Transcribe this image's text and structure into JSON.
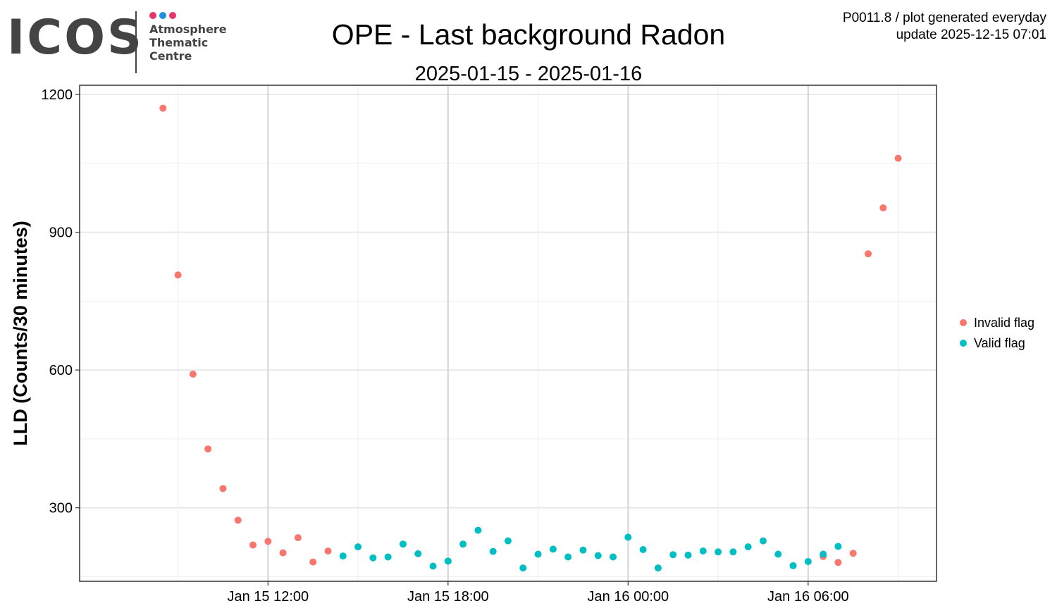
{
  "logo": {
    "wordmark": "ICOS",
    "lines": [
      "Atmosphere",
      "Thematic",
      "Centre"
    ],
    "dot_colors": [
      "#e6336b",
      "#1e8fe6",
      "#e6336b"
    ],
    "text_color": "#444444"
  },
  "header": {
    "note_line1": "P0011.8 / plot generated everyday",
    "note_line2": "update  2025-12-15 07:01"
  },
  "chart_data": {
    "type": "scatter",
    "title": "OPE - Last background Radon",
    "subtitle": "2025-01-15 - 2025-01-16",
    "xlabel": "",
    "ylabel": "LLD (Counts/30 minutes)",
    "x_unit": "datetime",
    "xlim": [
      "2025-01-15 07:00",
      "2025-01-16 09:00"
    ],
    "ylim": [
      140,
      1220
    ],
    "x_ticks": [
      "2025-01-15 12:00",
      "2025-01-15 18:00",
      "2025-01-16 00:00",
      "2025-01-16 06:00"
    ],
    "x_tick_labels": [
      "Jan 15 12:00",
      "Jan 15 18:00",
      "Jan 16 00:00",
      "Jan 16 06:00"
    ],
    "y_ticks": [
      300,
      600,
      900,
      1200
    ],
    "y_tick_labels": [
      "300",
      "600",
      "900",
      "1200"
    ],
    "grid": true,
    "legend_position": "right",
    "series": [
      {
        "name": "Invalid flag",
        "color": "#f8766d",
        "points": [
          [
            "2025-01-15 08:30",
            1170
          ],
          [
            "2025-01-15 09:00",
            807
          ],
          [
            "2025-01-15 09:30",
            591
          ],
          [
            "2025-01-15 10:00",
            428
          ],
          [
            "2025-01-15 10:30",
            342
          ],
          [
            "2025-01-15 11:00",
            273
          ],
          [
            "2025-01-15 11:30",
            219
          ],
          [
            "2025-01-15 12:00",
            227
          ],
          [
            "2025-01-15 12:30",
            202
          ],
          [
            "2025-01-15 13:00",
            235
          ],
          [
            "2025-01-15 13:30",
            182
          ],
          [
            "2025-01-15 14:00",
            206
          ],
          [
            "2025-01-16 06:30",
            194
          ],
          [
            "2025-01-16 07:00",
            181
          ],
          [
            "2025-01-16 07:30",
            201
          ],
          [
            "2025-01-16 08:00",
            853
          ],
          [
            "2025-01-16 08:30",
            953
          ],
          [
            "2025-01-16 09:00",
            1061
          ]
        ]
      },
      {
        "name": "Valid flag",
        "color": "#00bfc4",
        "points": [
          [
            "2025-01-15 14:30",
            195
          ],
          [
            "2025-01-15 15:00",
            215
          ],
          [
            "2025-01-15 15:30",
            191
          ],
          [
            "2025-01-15 16:00",
            193
          ],
          [
            "2025-01-15 16:30",
            221
          ],
          [
            "2025-01-15 17:00",
            200
          ],
          [
            "2025-01-15 17:30",
            173
          ],
          [
            "2025-01-15 18:00",
            184
          ],
          [
            "2025-01-15 18:30",
            221
          ],
          [
            "2025-01-15 19:00",
            251
          ],
          [
            "2025-01-15 19:30",
            205
          ],
          [
            "2025-01-15 20:00",
            228
          ],
          [
            "2025-01-15 20:30",
            169
          ],
          [
            "2025-01-15 21:00",
            199
          ],
          [
            "2025-01-15 21:30",
            210
          ],
          [
            "2025-01-15 22:00",
            193
          ],
          [
            "2025-01-15 22:30",
            208
          ],
          [
            "2025-01-15 23:00",
            196
          ],
          [
            "2025-01-15 23:30",
            193
          ],
          [
            "2025-01-16 00:00",
            236
          ],
          [
            "2025-01-16 00:30",
            209
          ],
          [
            "2025-01-16 01:00",
            169
          ],
          [
            "2025-01-16 01:30",
            198
          ],
          [
            "2025-01-16 02:00",
            197
          ],
          [
            "2025-01-16 02:30",
            206
          ],
          [
            "2025-01-16 03:00",
            204
          ],
          [
            "2025-01-16 03:30",
            204
          ],
          [
            "2025-01-16 04:00",
            215
          ],
          [
            "2025-01-16 04:30",
            228
          ],
          [
            "2025-01-16 05:00",
            199
          ],
          [
            "2025-01-16 05:30",
            174
          ],
          [
            "2025-01-16 06:00",
            183
          ],
          [
            "2025-01-16 06:30",
            199
          ],
          [
            "2025-01-16 07:00",
            216
          ]
        ]
      }
    ]
  }
}
